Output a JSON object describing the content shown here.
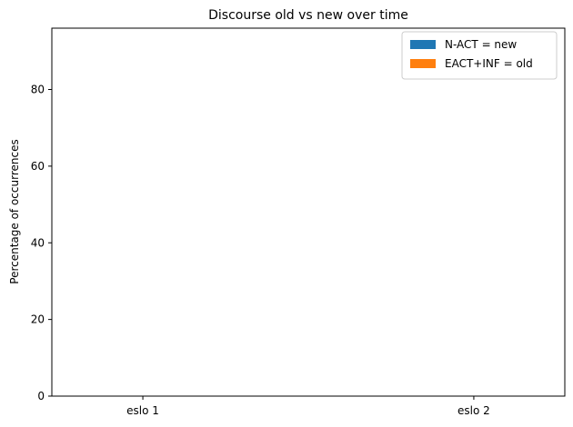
{
  "chart_data": {
    "type": "bar",
    "title": "Discourse old vs new over time",
    "xlabel": "",
    "ylabel": "Percentage of occurrences",
    "categories": [
      "eslo 1",
      "eslo 2"
    ],
    "series": [
      {
        "name": "N-ACT  =  new",
        "color": "#1f77b4",
        "values": [
          0,
          0
        ]
      },
      {
        "name": "EACT+INF  =  old",
        "color": "#ff7f0e",
        "values": [
          0,
          0
        ]
      }
    ],
    "ylim": [
      0,
      96
    ],
    "yticks": [
      0,
      20,
      40,
      60,
      80
    ],
    "grid": false,
    "legend_position": "top-right"
  }
}
